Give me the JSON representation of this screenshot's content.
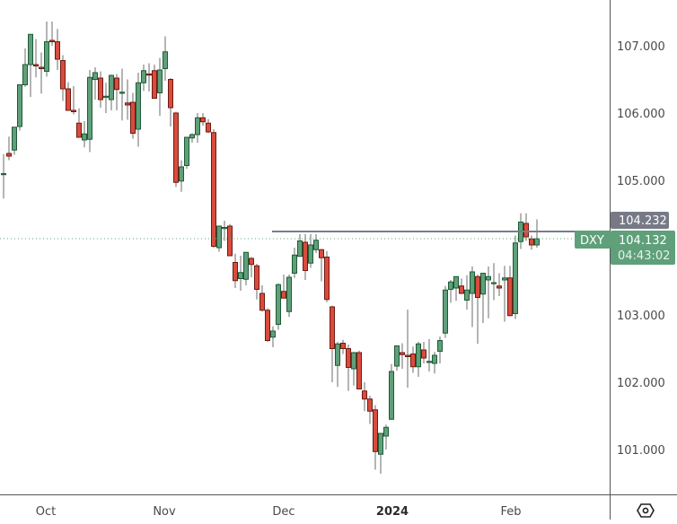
{
  "symbol": "DXY",
  "colors": {
    "up_fill": "#5fa07a",
    "up_border": "#1f5a36",
    "down_fill": "#d94c3d",
    "down_border": "#6e1a12",
    "wick": "#6b6b6b",
    "axis_line": "#555555",
    "resistance_line": "#7a7d87",
    "last_price_tag": "#5fa07a",
    "level_tag": "#777a86",
    "dotted_line": "#5fa07a"
  },
  "price_axis": {
    "ticks": [
      "107.000",
      "106.000",
      "105.000",
      "103.000",
      "102.000",
      "101.000"
    ],
    "tick_values": [
      107,
      106,
      105,
      103,
      102,
      101
    ]
  },
  "time_axis": {
    "labels": [
      {
        "text": "Oct",
        "x": 51,
        "bold": false
      },
      {
        "text": "Nov",
        "x": 183,
        "bold": false
      },
      {
        "text": "Dec",
        "x": 316,
        "bold": false
      },
      {
        "text": "2024",
        "x": 437,
        "bold": true
      },
      {
        "text": "Feb",
        "x": 569,
        "bold": false
      }
    ]
  },
  "tags": {
    "level_price": "104.232",
    "last_symbol": "DXY",
    "last_price": "104.132",
    "countdown": "04:43:02"
  },
  "settings_icon": "settings-hexagon-icon",
  "chart_data": {
    "type": "candlestick",
    "title": "DXY",
    "xlabel": "",
    "ylabel": "",
    "ylim": [
      100.3,
      107.7
    ],
    "y_ticks": [
      101,
      102,
      103,
      105,
      106,
      107
    ],
    "x_tick_labels": [
      "Oct",
      "Nov",
      "Dec",
      "2024",
      "Feb"
    ],
    "horizontal_line": 104.232,
    "last_price": 104.132,
    "grid": false,
    "candles_px_note": "x = pixel center; o/h/l/c are prices",
    "candles": [
      {
        "x": 4,
        "o": 105.1,
        "h": 105.39,
        "l": 104.73,
        "c": 105.1
      },
      {
        "x": 10,
        "o": 105.4,
        "h": 105.65,
        "l": 105.3,
        "c": 105.36
      },
      {
        "x": 16,
        "o": 105.45,
        "h": 105.72,
        "l": 105.38,
        "c": 105.79
      },
      {
        "x": 22,
        "o": 105.8,
        "h": 106.09,
        "l": 105.74,
        "c": 106.42
      },
      {
        "x": 28,
        "o": 106.42,
        "h": 106.96,
        "l": 106.39,
        "c": 106.72
      },
      {
        "x": 34,
        "o": 106.72,
        "h": 107.14,
        "l": 106.24,
        "c": 107.17
      },
      {
        "x": 40,
        "o": 106.72,
        "h": 107.1,
        "l": 106.53,
        "c": 106.7
      },
      {
        "x": 46,
        "o": 106.68,
        "h": 106.9,
        "l": 106.29,
        "c": 106.66
      },
      {
        "x": 52,
        "o": 106.62,
        "h": 107.36,
        "l": 106.54,
        "c": 107.06
      },
      {
        "x": 58,
        "o": 107.08,
        "h": 107.36,
        "l": 107.0,
        "c": 107.06
      },
      {
        "x": 64,
        "o": 107.06,
        "h": 107.25,
        "l": 106.64,
        "c": 106.8
      },
      {
        "x": 70,
        "o": 106.78,
        "h": 106.86,
        "l": 106.18,
        "c": 106.36
      },
      {
        "x": 76,
        "o": 106.36,
        "h": 106.46,
        "l": 106.08,
        "c": 106.04
      },
      {
        "x": 82,
        "o": 106.04,
        "h": 106.4,
        "l": 105.98,
        "c": 106.02
      },
      {
        "x": 88,
        "o": 105.85,
        "h": 106.07,
        "l": 105.64,
        "c": 105.64
      },
      {
        "x": 94,
        "o": 105.6,
        "h": 105.88,
        "l": 105.49,
        "c": 105.69
      },
      {
        "x": 100,
        "o": 105.61,
        "h": 106.64,
        "l": 105.42,
        "c": 106.53
      },
      {
        "x": 106,
        "o": 106.5,
        "h": 106.68,
        "l": 106.2,
        "c": 106.6
      },
      {
        "x": 112,
        "o": 106.52,
        "h": 106.62,
        "l": 106.08,
        "c": 106.2
      },
      {
        "x": 118,
        "o": 106.25,
        "h": 106.45,
        "l": 106.0,
        "c": 106.25
      },
      {
        "x": 124,
        "o": 106.2,
        "h": 106.57,
        "l": 106.04,
        "c": 106.56
      },
      {
        "x": 130,
        "o": 106.52,
        "h": 106.58,
        "l": 106.04,
        "c": 106.35
      },
      {
        "x": 136,
        "o": 106.3,
        "h": 106.66,
        "l": 105.89,
        "c": 106.31
      },
      {
        "x": 142,
        "o": 106.15,
        "h": 106.5,
        "l": 105.9,
        "c": 106.12
      },
      {
        "x": 148,
        "o": 106.16,
        "h": 106.3,
        "l": 105.62,
        "c": 105.7
      },
      {
        "x": 154,
        "o": 105.76,
        "h": 106.6,
        "l": 105.5,
        "c": 106.45
      },
      {
        "x": 160,
        "o": 106.45,
        "h": 106.72,
        "l": 106.33,
        "c": 106.63
      },
      {
        "x": 166,
        "o": 106.58,
        "h": 106.74,
        "l": 106.32,
        "c": 106.57
      },
      {
        "x": 172,
        "o": 106.63,
        "h": 106.72,
        "l": 106.24,
        "c": 106.22
      },
      {
        "x": 178,
        "o": 106.3,
        "h": 106.82,
        "l": 105.96,
        "c": 106.64
      },
      {
        "x": 184,
        "o": 106.66,
        "h": 107.14,
        "l": 106.48,
        "c": 106.91
      },
      {
        "x": 190,
        "o": 106.5,
        "h": 106.52,
        "l": 105.8,
        "c": 106.08
      },
      {
        "x": 196,
        "o": 106.0,
        "h": 106.02,
        "l": 104.9,
        "c": 104.97
      },
      {
        "x": 202,
        "o": 104.99,
        "h": 105.3,
        "l": 104.83,
        "c": 105.2
      },
      {
        "x": 208,
        "o": 105.22,
        "h": 105.5,
        "l": 105.17,
        "c": 105.64
      },
      {
        "x": 214,
        "o": 105.63,
        "h": 105.7,
        "l": 105.56,
        "c": 105.68
      },
      {
        "x": 220,
        "o": 105.68,
        "h": 106.0,
        "l": 105.56,
        "c": 105.93
      },
      {
        "x": 226,
        "o": 105.93,
        "h": 106.0,
        "l": 105.81,
        "c": 105.87
      },
      {
        "x": 232,
        "o": 105.85,
        "h": 105.91,
        "l": 105.7,
        "c": 105.72
      },
      {
        "x": 238,
        "o": 105.71,
        "h": 105.76,
        "l": 104.0,
        "c": 104.02
      },
      {
        "x": 244,
        "o": 104.0,
        "h": 104.31,
        "l": 103.94,
        "c": 104.32
      },
      {
        "x": 250,
        "o": 104.3,
        "h": 104.4,
        "l": 104.1,
        "c": 104.3
      },
      {
        "x": 256,
        "o": 104.32,
        "h": 104.35,
        "l": 103.88,
        "c": 103.88
      },
      {
        "x": 262,
        "o": 103.78,
        "h": 103.91,
        "l": 103.4,
        "c": 103.51
      },
      {
        "x": 268,
        "o": 103.54,
        "h": 103.88,
        "l": 103.36,
        "c": 103.63
      },
      {
        "x": 274,
        "o": 103.53,
        "h": 103.93,
        "l": 103.44,
        "c": 103.93
      },
      {
        "x": 280,
        "o": 103.84,
        "h": 103.86,
        "l": 103.56,
        "c": 103.75
      },
      {
        "x": 286,
        "o": 103.73,
        "h": 103.76,
        "l": 103.23,
        "c": 103.38
      },
      {
        "x": 292,
        "o": 103.32,
        "h": 103.44,
        "l": 103.05,
        "c": 103.07
      },
      {
        "x": 298,
        "o": 103.07,
        "h": 103.1,
        "l": 102.6,
        "c": 102.62
      },
      {
        "x": 304,
        "o": 102.67,
        "h": 102.83,
        "l": 102.52,
        "c": 102.76
      },
      {
        "x": 310,
        "o": 102.86,
        "h": 103.47,
        "l": 102.78,
        "c": 103.45
      },
      {
        "x": 316,
        "o": 103.35,
        "h": 103.6,
        "l": 103.28,
        "c": 103.25
      },
      {
        "x": 322,
        "o": 103.05,
        "h": 103.6,
        "l": 102.97,
        "c": 103.56
      },
      {
        "x": 328,
        "o": 103.62,
        "h": 104.0,
        "l": 103.55,
        "c": 103.89
      },
      {
        "x": 334,
        "o": 103.87,
        "h": 104.2,
        "l": 103.9,
        "c": 104.1
      },
      {
        "x": 340,
        "o": 104.08,
        "h": 104.2,
        "l": 103.52,
        "c": 103.66
      },
      {
        "x": 346,
        "o": 103.77,
        "h": 104.2,
        "l": 103.7,
        "c": 104.04
      },
      {
        "x": 352,
        "o": 103.97,
        "h": 104.2,
        "l": 103.92,
        "c": 104.11
      },
      {
        "x": 358,
        "o": 103.97,
        "h": 103.98,
        "l": 103.5,
        "c": 103.85
      },
      {
        "x": 364,
        "o": 103.86,
        "h": 103.95,
        "l": 103.19,
        "c": 103.23
      },
      {
        "x": 370,
        "o": 103.12,
        "h": 103.14,
        "l": 102.0,
        "c": 102.5
      },
      {
        "x": 376,
        "o": 102.25,
        "h": 102.6,
        "l": 101.93,
        "c": 102.57
      },
      {
        "x": 382,
        "o": 102.58,
        "h": 102.63,
        "l": 102.42,
        "c": 102.5
      },
      {
        "x": 388,
        "o": 102.5,
        "h": 102.56,
        "l": 101.87,
        "c": 102.22
      },
      {
        "x": 394,
        "o": 102.2,
        "h": 102.45,
        "l": 101.95,
        "c": 102.44
      },
      {
        "x": 400,
        "o": 102.44,
        "h": 102.47,
        "l": 101.93,
        "c": 101.9
      },
      {
        "x": 406,
        "o": 101.87,
        "h": 102.0,
        "l": 101.57,
        "c": 101.75
      },
      {
        "x": 412,
        "o": 101.75,
        "h": 101.8,
        "l": 101.38,
        "c": 101.57
      },
      {
        "x": 418,
        "o": 101.59,
        "h": 101.66,
        "l": 100.7,
        "c": 100.97
      },
      {
        "x": 424,
        "o": 100.93,
        "h": 101.15,
        "l": 100.64,
        "c": 101.24
      },
      {
        "x": 430,
        "o": 101.2,
        "h": 101.37,
        "l": 101.0,
        "c": 101.33
      },
      {
        "x": 436,
        "o": 101.45,
        "h": 102.27,
        "l": 101.44,
        "c": 102.16
      },
      {
        "x": 442,
        "o": 102.24,
        "h": 102.48,
        "l": 102.17,
        "c": 102.54
      },
      {
        "x": 448,
        "o": 102.44,
        "h": 102.58,
        "l": 102.2,
        "c": 102.41
      },
      {
        "x": 454,
        "o": 102.4,
        "h": 103.08,
        "l": 101.92,
        "c": 102.38
      },
      {
        "x": 460,
        "o": 102.42,
        "h": 102.53,
        "l": 102.14,
        "c": 102.23
      },
      {
        "x": 466,
        "o": 102.23,
        "h": 102.6,
        "l": 102.08,
        "c": 102.57
      },
      {
        "x": 472,
        "o": 102.48,
        "h": 102.6,
        "l": 102.28,
        "c": 102.36
      },
      {
        "x": 478,
        "o": 102.31,
        "h": 102.64,
        "l": 102.16,
        "c": 102.31
      },
      {
        "x": 484,
        "o": 102.28,
        "h": 102.45,
        "l": 102.13,
        "c": 102.4
      },
      {
        "x": 490,
        "o": 102.46,
        "h": 102.68,
        "l": 102.28,
        "c": 102.62
      },
      {
        "x": 496,
        "o": 102.73,
        "h": 103.43,
        "l": 102.66,
        "c": 103.37
      },
      {
        "x": 502,
        "o": 103.38,
        "h": 103.52,
        "l": 103.18,
        "c": 103.49
      },
      {
        "x": 508,
        "o": 103.4,
        "h": 103.57,
        "l": 103.21,
        "c": 103.57
      },
      {
        "x": 514,
        "o": 103.43,
        "h": 103.54,
        "l": 103.31,
        "c": 103.32
      },
      {
        "x": 520,
        "o": 103.22,
        "h": 103.59,
        "l": 103.08,
        "c": 103.37
      },
      {
        "x": 526,
        "o": 103.32,
        "h": 103.72,
        "l": 102.82,
        "c": 103.64
      },
      {
        "x": 532,
        "o": 103.57,
        "h": 103.6,
        "l": 102.57,
        "c": 103.26
      },
      {
        "x": 538,
        "o": 103.31,
        "h": 103.62,
        "l": 102.88,
        "c": 103.62
      },
      {
        "x": 544,
        "o": 103.52,
        "h": 103.72,
        "l": 102.95,
        "c": 103.57
      },
      {
        "x": 550,
        "o": 103.48,
        "h": 103.77,
        "l": 103.22,
        "c": 103.48
      },
      {
        "x": 556,
        "o": 103.43,
        "h": 103.62,
        "l": 103.28,
        "c": 103.4
      },
      {
        "x": 562,
        "o": 103.52,
        "h": 103.73,
        "l": 102.9,
        "c": 103.55
      },
      {
        "x": 568,
        "o": 103.55,
        "h": 103.73,
        "l": 102.98,
        "c": 102.99
      },
      {
        "x": 574,
        "o": 103.02,
        "h": 104.18,
        "l": 102.94,
        "c": 104.07
      },
      {
        "x": 580,
        "o": 104.09,
        "h": 104.51,
        "l": 103.98,
        "c": 104.38
      },
      {
        "x": 586,
        "o": 104.36,
        "h": 104.51,
        "l": 104.1,
        "c": 104.16
      },
      {
        "x": 592,
        "o": 104.13,
        "h": 104.18,
        "l": 103.97,
        "c": 104.04
      },
      {
        "x": 598,
        "o": 104.04,
        "h": 104.42,
        "l": 104.0,
        "c": 104.132
      }
    ]
  }
}
